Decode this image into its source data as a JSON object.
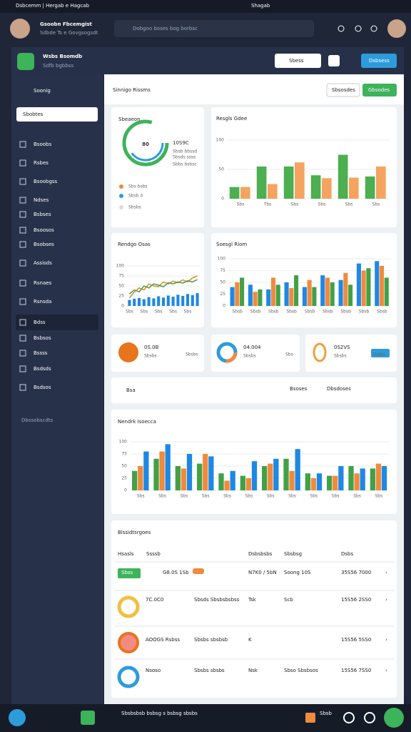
{
  "browser": {
    "tab": "Dsbcemm | Hergab e Hagcab",
    "address": "Shagab"
  },
  "header": {
    "title": "Gsoobn Fbcemgist",
    "subtitle": "Sdbde Ts e Govgsogsdt",
    "search": "Dobgoo boses bog borbsc"
  },
  "app": {
    "name": "Wsbs Bsomdb",
    "subtitle": "Sdfb bgbbss",
    "select": "Sbess",
    "button": "Dsbsess"
  },
  "sidebar": {
    "title": "Soonig",
    "search": "Sbobtes",
    "items": [
      "Bsoobs",
      "Rsbes",
      "Bsoobgss",
      "Ndses",
      "Bsbses",
      "Bsoosos",
      "Bsobses",
      "Assisds",
      "Rsnaes",
      "Rsnsda",
      "Bdss",
      "Bsbsos",
      "Bssss",
      "Bsdsds",
      "Bsdsos"
    ],
    "footer": "Dbssobscdts"
  },
  "page": {
    "title": "Sinnigo Rissms",
    "buttons": [
      "Sbsosdes",
      "Gbsodes"
    ]
  },
  "gauge": {
    "title": "Sbeaeon",
    "value": "80",
    "lines": [
      "10S9C",
      "Sbsb bbssd",
      "Sbsds ssss",
      "Sbbs bsbsc"
    ],
    "legend": [
      "Sbs bsbs",
      "Sbsb 4",
      "Sbsbs"
    ]
  },
  "stats": [
    {
      "value": "0S.0B",
      "sub": "Sbsbs",
      "tag": "Sbsbs"
    },
    {
      "value": "04.004",
      "sub": "Sbsbs",
      "tag": "Sbs"
    },
    {
      "value": "0S2VS",
      "sub": "Sbsbs",
      "tag": "Sbsbs"
    }
  ],
  "filters": [
    "Bsa",
    "Bsoses",
    "Dbsdoses"
  ],
  "table": {
    "title": "Blssidtsrgoes",
    "headers": [
      "Hsasls",
      "Ssssb",
      "Dsbsbsbs",
      "Sbsbsg",
      "Dsbs"
    ],
    "rows": [
      [
        "Sbss",
        "G8.0S 1Sb",
        "N7K0 / 5bN",
        "Soong 10S",
        "35S56 7000"
      ],
      [
        "7C.0C0",
        "Sbsds Sbsbsbsbss",
        "Tsk",
        "Scb",
        "15S56 2SS0"
      ],
      [
        "AOOGS Rsbss",
        "Sbsbs sbsbsb",
        "K",
        "",
        "15S56 5SS0"
      ],
      [
        "Nsoso",
        "Sbsbs sbsbs",
        "Nsk",
        "Sbso Sbsbsos",
        "15S56 7SS0"
      ]
    ]
  },
  "taskbar": {
    "text": "Sbsbsbsb bsbsg s bsbsg sbsbs",
    "badge": "Sbsb"
  },
  "chart_data": [
    {
      "type": "bar",
      "title": "Resgls Gdee",
      "categories": [
        "Sbs",
        "Tbs",
        "Sbs",
        "Sbs",
        "Sbs",
        "Sbs"
      ],
      "series": [
        {
          "color": "#4caf50",
          "values": [
            20,
            55,
            55,
            40,
            75,
            38
          ]
        },
        {
          "color": "#f4a460",
          "values": [
            20,
            25,
            62,
            35,
            36,
            55
          ]
        }
      ],
      "ylim": [
        0,
        100
      ],
      "yticks": [
        0,
        50,
        100
      ],
      "grid": true
    },
    {
      "type": "combo",
      "title": "Rendgo Osas",
      "categories": [
        "Sbs",
        null,
        null,
        "Sbs",
        null,
        null,
        "Sbs",
        null,
        null,
        "Sbs",
        null,
        null,
        "Sbs",
        null,
        null
      ],
      "values": [
        15,
        18,
        20,
        17,
        22,
        19,
        24,
        21,
        26,
        23,
        28,
        25,
        30,
        27,
        32
      ],
      "color": "#1e88e5",
      "lines": [
        {
          "color": "#e08a2c",
          "values": [
            20,
            35,
            45,
            40,
            55,
            50,
            48,
            60,
            55,
            62,
            58,
            65,
            60,
            70,
            75
          ]
        },
        {
          "color": "#43a047",
          "values": [
            30,
            40,
            35,
            50,
            45,
            55,
            52,
            48,
            58,
            55,
            60,
            57,
            63,
            60,
            66
          ]
        }
      ],
      "ylim": [
        0,
        100
      ],
      "yticks": [
        0,
        25,
        50,
        75,
        100
      ],
      "grid": true
    },
    {
      "type": "bar",
      "title": "Soesgl Rlom",
      "categories": [
        "Sbsb",
        "Sbsb",
        "Sbsb",
        "Sbsb",
        "Sbsb",
        "Sbsb",
        "Sbsb",
        "Sbsb",
        "Sbsb"
      ],
      "series": [
        {
          "color": "#1e88e5",
          "values": [
            40,
            45,
            35,
            50,
            40,
            65,
            55,
            90,
            95
          ]
        },
        {
          "color": "#f08a3c",
          "values": [
            50,
            30,
            60,
            38,
            55,
            60,
            70,
            75,
            85
          ]
        },
        {
          "color": "#43a047",
          "values": [
            60,
            35,
            45,
            65,
            40,
            50,
            45,
            80,
            60
          ]
        }
      ],
      "ylim": [
        0,
        100
      ],
      "yticks": [
        0,
        25,
        50,
        75,
        100
      ],
      "grid": true
    },
    {
      "type": "bar",
      "title": "Nendrk Isoecca",
      "categories": [
        "Sbs",
        "Sbs",
        "Sbs",
        "Sbs",
        "Sbs",
        "Sbs",
        "Sbs",
        "Sbs",
        "Sbs",
        "Sbs",
        "Sbs",
        "Sbs"
      ],
      "series": [
        {
          "color": "#43a047",
          "values": [
            40,
            65,
            50,
            55,
            35,
            30,
            50,
            65,
            35,
            30,
            50,
            45
          ]
        },
        {
          "color": "#f08a3c",
          "values": [
            50,
            80,
            45,
            75,
            20,
            25,
            55,
            40,
            25,
            30,
            35,
            55
          ]
        },
        {
          "color": "#1e88e5",
          "values": [
            80,
            95,
            75,
            70,
            40,
            60,
            65,
            85,
            35,
            50,
            45,
            50
          ]
        }
      ],
      "ylim": [
        0,
        100
      ],
      "yticks": [
        0,
        25,
        50,
        75,
        100
      ],
      "grid": true
    }
  ]
}
